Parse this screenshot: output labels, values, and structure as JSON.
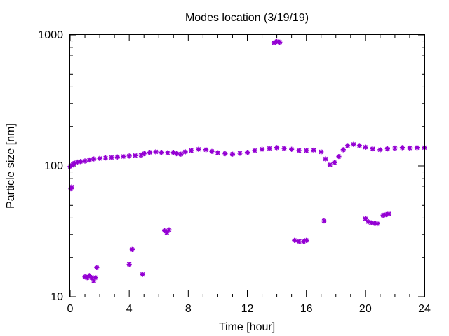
{
  "chart_data": {
    "type": "scatter",
    "title": "Modes location (3/19/19)",
    "xlabel": "Time [hour]",
    "ylabel": "Particle size [nm]",
    "xlim": [
      0,
      24
    ],
    "ylim": [
      10,
      1000
    ],
    "yscale": "log",
    "xticks": [
      0,
      4,
      8,
      12,
      16,
      20,
      24
    ],
    "yticks": [
      10,
      100,
      1000
    ],
    "xtick_labels": [
      "0",
      "4",
      "8",
      "12",
      "16",
      "20",
      "24"
    ],
    "ytick_labels": [
      "10",
      "100",
      "1000"
    ],
    "grid": false,
    "legend": "none",
    "marker_color": "#9400D3",
    "marker": "star",
    "series": [
      {
        "name": "",
        "points": [
          [
            0.0,
            99
          ],
          [
            0.1,
            101
          ],
          [
            0.2,
            103
          ],
          [
            0.3,
            105
          ],
          [
            0.5,
            107
          ],
          [
            0.7,
            108
          ],
          [
            1.0,
            109
          ],
          [
            1.3,
            111
          ],
          [
            1.6,
            113
          ],
          [
            2.0,
            114
          ],
          [
            2.4,
            115
          ],
          [
            2.8,
            116
          ],
          [
            3.2,
            117
          ],
          [
            3.6,
            118
          ],
          [
            4.0,
            119
          ],
          [
            4.4,
            120
          ],
          [
            4.8,
            121
          ],
          [
            5.0,
            124
          ],
          [
            5.4,
            127
          ],
          [
            5.8,
            128
          ],
          [
            6.2,
            127
          ],
          [
            6.6,
            126
          ],
          [
            7.0,
            127
          ],
          [
            7.2,
            124
          ],
          [
            7.5,
            123
          ],
          [
            7.8,
            128
          ],
          [
            8.2,
            131
          ],
          [
            8.7,
            134
          ],
          [
            9.2,
            133
          ],
          [
            9.6,
            129
          ],
          [
            10.0,
            126
          ],
          [
            10.5,
            124
          ],
          [
            11.0,
            123
          ],
          [
            11.5,
            125
          ],
          [
            12.0,
            127
          ],
          [
            12.5,
            131
          ],
          [
            13.0,
            134
          ],
          [
            13.5,
            136
          ],
          [
            14.0,
            138
          ],
          [
            14.5,
            136
          ],
          [
            15.0,
            134
          ],
          [
            15.5,
            131
          ],
          [
            16.0,
            131
          ],
          [
            16.5,
            132
          ],
          [
            17.0,
            128
          ],
          [
            17.3,
            113
          ],
          [
            17.6,
            102
          ],
          [
            17.9,
            106
          ],
          [
            18.2,
            118
          ],
          [
            18.5,
            133
          ],
          [
            18.8,
            143
          ],
          [
            19.2,
            146
          ],
          [
            19.6,
            143
          ],
          [
            20.0,
            139
          ],
          [
            20.5,
            135
          ],
          [
            21.0,
            133
          ],
          [
            21.5,
            135
          ],
          [
            22.0,
            137
          ],
          [
            22.5,
            138
          ],
          [
            23.0,
            137
          ],
          [
            23.5,
            138
          ],
          [
            24.0,
            138
          ],
          [
            0.05,
            67
          ],
          [
            0.1,
            69
          ],
          [
            1.0,
            14.2
          ],
          [
            1.15,
            14.0
          ],
          [
            1.3,
            14.5
          ],
          [
            1.45,
            14.0
          ],
          [
            1.6,
            13.2
          ],
          [
            1.7,
            14.0
          ],
          [
            1.8,
            16.7
          ],
          [
            4.0,
            17.7
          ],
          [
            4.2,
            23.0
          ],
          [
            4.9,
            14.8
          ],
          [
            6.4,
            32
          ],
          [
            6.55,
            31
          ],
          [
            6.7,
            32.5
          ],
          [
            13.8,
            870
          ],
          [
            14.0,
            890
          ],
          [
            14.2,
            880
          ],
          [
            15.2,
            27
          ],
          [
            15.5,
            26.5
          ],
          [
            15.8,
            26.5
          ],
          [
            16.0,
            27
          ],
          [
            17.2,
            38
          ],
          [
            20.0,
            39.5
          ],
          [
            20.2,
            37.5
          ],
          [
            20.4,
            36.8
          ],
          [
            20.6,
            36.5
          ],
          [
            20.8,
            36.2
          ],
          [
            21.2,
            42
          ],
          [
            21.4,
            42.5
          ],
          [
            21.6,
            43
          ]
        ]
      }
    ]
  }
}
